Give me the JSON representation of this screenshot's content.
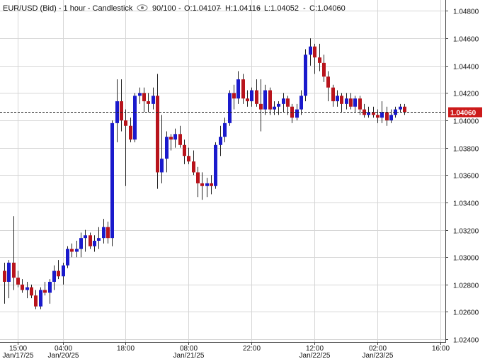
{
  "header": {
    "symbol": "EUR/USD (Bid) - 1 hour - Candlestick",
    "view_icon": "eye-icon",
    "bars_shown": "90/100",
    "open": "O:1.04107",
    "high": "H:1.04116",
    "low": "L:1.04052",
    "close": "C:1.04060"
  },
  "last_price_label": "1.04060",
  "colors": {
    "up": "#1a1acc",
    "down": "#b8141c",
    "last_price_box": "#cc1a1a",
    "grid": "#d6d6d6"
  },
  "chart_data": {
    "type": "candlestick",
    "ylim": [
      1.0238,
      1.0488
    ],
    "y_ticks": [
      "1.02400",
      "1.02600",
      "1.02800",
      "1.03000",
      "1.03200",
      "1.03400",
      "1.03600",
      "1.03800",
      "1.04000",
      "1.04200",
      "1.04400",
      "1.04600",
      "1.04800"
    ],
    "x_ticks": [
      {
        "i": 3,
        "time": "15:00",
        "date": "Jan/17/25"
      },
      {
        "i": 13,
        "time": "04:00",
        "date": "Jan/20/25"
      },
      {
        "i": 27,
        "time": "18:00",
        "date": ""
      },
      {
        "i": 41,
        "time": "08:00",
        "date": "Jan/21/25"
      },
      {
        "i": 55,
        "time": "22:00",
        "date": ""
      },
      {
        "i": 69,
        "time": "12:00",
        "date": "Jan/22/25"
      },
      {
        "i": 83,
        "time": "02:00",
        "date": "Jan/23/25"
      },
      {
        "i": 97,
        "time": "16:00",
        "date": ""
      }
    ],
    "last_price": 1.0406,
    "candles": [
      [
        1.029,
        1.0296,
        1.0266,
        1.0282
      ],
      [
        1.0282,
        1.0298,
        1.027,
        1.0296
      ],
      [
        1.0296,
        1.033,
        1.0276,
        1.0285
      ],
      [
        1.0285,
        1.029,
        1.0278,
        1.028
      ],
      [
        1.028,
        1.0284,
        1.0274,
        1.0276
      ],
      [
        1.0276,
        1.0282,
        1.027,
        1.0278
      ],
      [
        1.0278,
        1.028,
        1.027,
        1.0272
      ],
      [
        1.0272,
        1.0276,
        1.0262,
        1.0264
      ],
      [
        1.0264,
        1.0278,
        1.0262,
        1.0276
      ],
      [
        1.0276,
        1.0282,
        1.0272,
        1.0274
      ],
      [
        1.0274,
        1.0284,
        1.0266,
        1.0282
      ],
      [
        1.0282,
        1.0294,
        1.0276,
        1.029
      ],
      [
        1.029,
        1.0298,
        1.0284,
        1.0286
      ],
      [
        1.0286,
        1.0296,
        1.028,
        1.0294
      ],
      [
        1.0294,
        1.0308,
        1.0292,
        1.0306
      ],
      [
        1.0306,
        1.031,
        1.03,
        1.0304
      ],
      [
        1.0304,
        1.0312,
        1.03,
        1.0306
      ],
      [
        1.0306,
        1.0318,
        1.03,
        1.0314
      ],
      [
        1.0314,
        1.032,
        1.0304,
        1.0316
      ],
      [
        1.0316,
        1.0318,
        1.0306,
        1.0308
      ],
      [
        1.0308,
        1.0316,
        1.0304,
        1.0312
      ],
      [
        1.0312,
        1.0322,
        1.0306,
        1.0314
      ],
      [
        1.0314,
        1.0328,
        1.031,
        1.0322
      ],
      [
        1.0322,
        1.0326,
        1.031,
        1.0314
      ],
      [
        1.0314,
        1.04,
        1.0308,
        1.0398
      ],
      [
        1.0398,
        1.043,
        1.0384,
        1.0414
      ],
      [
        1.0414,
        1.043,
        1.0392,
        1.04
      ],
      [
        1.04,
        1.0408,
        1.0352,
        1.0396
      ],
      [
        1.0396,
        1.0402,
        1.0384,
        1.0386
      ],
      [
        1.0386,
        1.042,
        1.0384,
        1.0418
      ],
      [
        1.0418,
        1.0424,
        1.0412,
        1.042
      ],
      [
        1.042,
        1.0424,
        1.0406,
        1.0414
      ],
      [
        1.0414,
        1.042,
        1.0406,
        1.0412
      ],
      [
        1.0412,
        1.0424,
        1.0408,
        1.0418
      ],
      [
        1.0418,
        1.0434,
        1.035,
        1.0362
      ],
      [
        1.0362,
        1.0404,
        1.0354,
        1.0372
      ],
      [
        1.0372,
        1.0392,
        1.0362,
        1.0388
      ],
      [
        1.0388,
        1.039,
        1.0378,
        1.0386
      ],
      [
        1.0386,
        1.0394,
        1.038,
        1.039
      ],
      [
        1.039,
        1.0396,
        1.038,
        1.0382
      ],
      [
        1.0382,
        1.0386,
        1.0368,
        1.0374
      ],
      [
        1.0374,
        1.038,
        1.0368,
        1.037
      ],
      [
        1.037,
        1.0378,
        1.036,
        1.0362
      ],
      [
        1.0362,
        1.0366,
        1.0344,
        1.0354
      ],
      [
        1.0354,
        1.0362,
        1.0342,
        1.0352
      ],
      [
        1.0352,
        1.0358,
        1.0344,
        1.0354
      ],
      [
        1.0354,
        1.036,
        1.0346,
        1.0352
      ],
      [
        1.0352,
        1.0384,
        1.035,
        1.0382
      ],
      [
        1.0382,
        1.0396,
        1.0374,
        1.0388
      ],
      [
        1.0388,
        1.0402,
        1.0384,
        1.0398
      ],
      [
        1.0398,
        1.0422,
        1.0396,
        1.042
      ],
      [
        1.042,
        1.0426,
        1.0408,
        1.0416
      ],
      [
        1.0416,
        1.0436,
        1.0412,
        1.043
      ],
      [
        1.043,
        1.0434,
        1.0412,
        1.0416
      ],
      [
        1.0416,
        1.0422,
        1.041,
        1.0414
      ],
      [
        1.0414,
        1.0424,
        1.041,
        1.0422
      ],
      [
        1.0422,
        1.043,
        1.041,
        1.0412
      ],
      [
        1.0412,
        1.043,
        1.0392,
        1.0408
      ],
      [
        1.0408,
        1.0426,
        1.0404,
        1.0422
      ],
      [
        1.0422,
        1.0424,
        1.0404,
        1.0408
      ],
      [
        1.0408,
        1.0414,
        1.0404,
        1.041
      ],
      [
        1.041,
        1.0414,
        1.0404,
        1.0412
      ],
      [
        1.0412,
        1.042,
        1.0406,
        1.0416
      ],
      [
        1.0416,
        1.0418,
        1.0404,
        1.041
      ],
      [
        1.041,
        1.0412,
        1.0398,
        1.0402
      ],
      [
        1.0402,
        1.0412,
        1.04,
        1.0408
      ],
      [
        1.0408,
        1.0422,
        1.0404,
        1.0418
      ],
      [
        1.0418,
        1.0452,
        1.0414,
        1.0448
      ],
      [
        1.0448,
        1.046,
        1.044,
        1.0454
      ],
      [
        1.0454,
        1.0456,
        1.0434,
        1.0446
      ],
      [
        1.0446,
        1.0456,
        1.0436,
        1.0442
      ],
      [
        1.0442,
        1.0448,
        1.0428,
        1.0432
      ],
      [
        1.0432,
        1.0436,
        1.0414,
        1.0424
      ],
      [
        1.0424,
        1.0426,
        1.041,
        1.0414
      ],
      [
        1.0414,
        1.0422,
        1.041,
        1.0418
      ],
      [
        1.0418,
        1.042,
        1.0406,
        1.0412
      ],
      [
        1.0412,
        1.042,
        1.0408,
        1.0416
      ],
      [
        1.0416,
        1.042,
        1.0408,
        1.041
      ],
      [
        1.041,
        1.0418,
        1.0406,
        1.0416
      ],
      [
        1.0416,
        1.0418,
        1.0404,
        1.0408
      ],
      [
        1.0408,
        1.0412,
        1.0402,
        1.0404
      ],
      [
        1.0404,
        1.041,
        1.0402,
        1.0406
      ],
      [
        1.0406,
        1.041,
        1.0402,
        1.0404
      ],
      [
        1.0404,
        1.0408,
        1.0398,
        1.0402
      ],
      [
        1.0402,
        1.0414,
        1.0398,
        1.0406
      ],
      [
        1.0406,
        1.041,
        1.0396,
        1.04
      ],
      [
        1.04,
        1.0408,
        1.0398,
        1.0404
      ],
      [
        1.0404,
        1.041,
        1.0402,
        1.0408
      ],
      [
        1.0408,
        1.0412,
        1.0406,
        1.041
      ],
      [
        1.041,
        1.0412,
        1.0404,
        1.0406
      ]
    ]
  }
}
